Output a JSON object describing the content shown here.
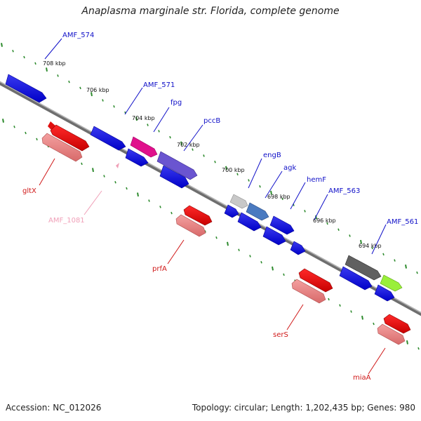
{
  "title": "Anaplasma marginale str. Florida, complete genome",
  "footer": {
    "accession": "Accession: NC_012026",
    "summary": "Topology: circular; Length: 1,202,435 bp; Genes: 980"
  },
  "colors": {
    "backbone": "#8c8c8c",
    "tick": "#2e8b2e",
    "forward_label": "#1010c8",
    "reverse_label": "#d01818",
    "reverse_pale_label": "#f0a0b8"
  },
  "scale_labels": [
    "708 kbp",
    "706 kbp",
    "704 kbp",
    "702 kbp",
    "700 kbp",
    "698 kbp",
    "696 kbp",
    "694 kbp"
  ],
  "forward_genes": [
    "AMF_574",
    "AMF_571",
    "fpg",
    "pccB",
    "engB",
    "agk",
    "hemF",
    "AMF_563",
    "AMF_561"
  ],
  "reverse_genes": [
    "gltX",
    "AMF_1081",
    "prfA",
    "serS",
    "miaA"
  ]
}
